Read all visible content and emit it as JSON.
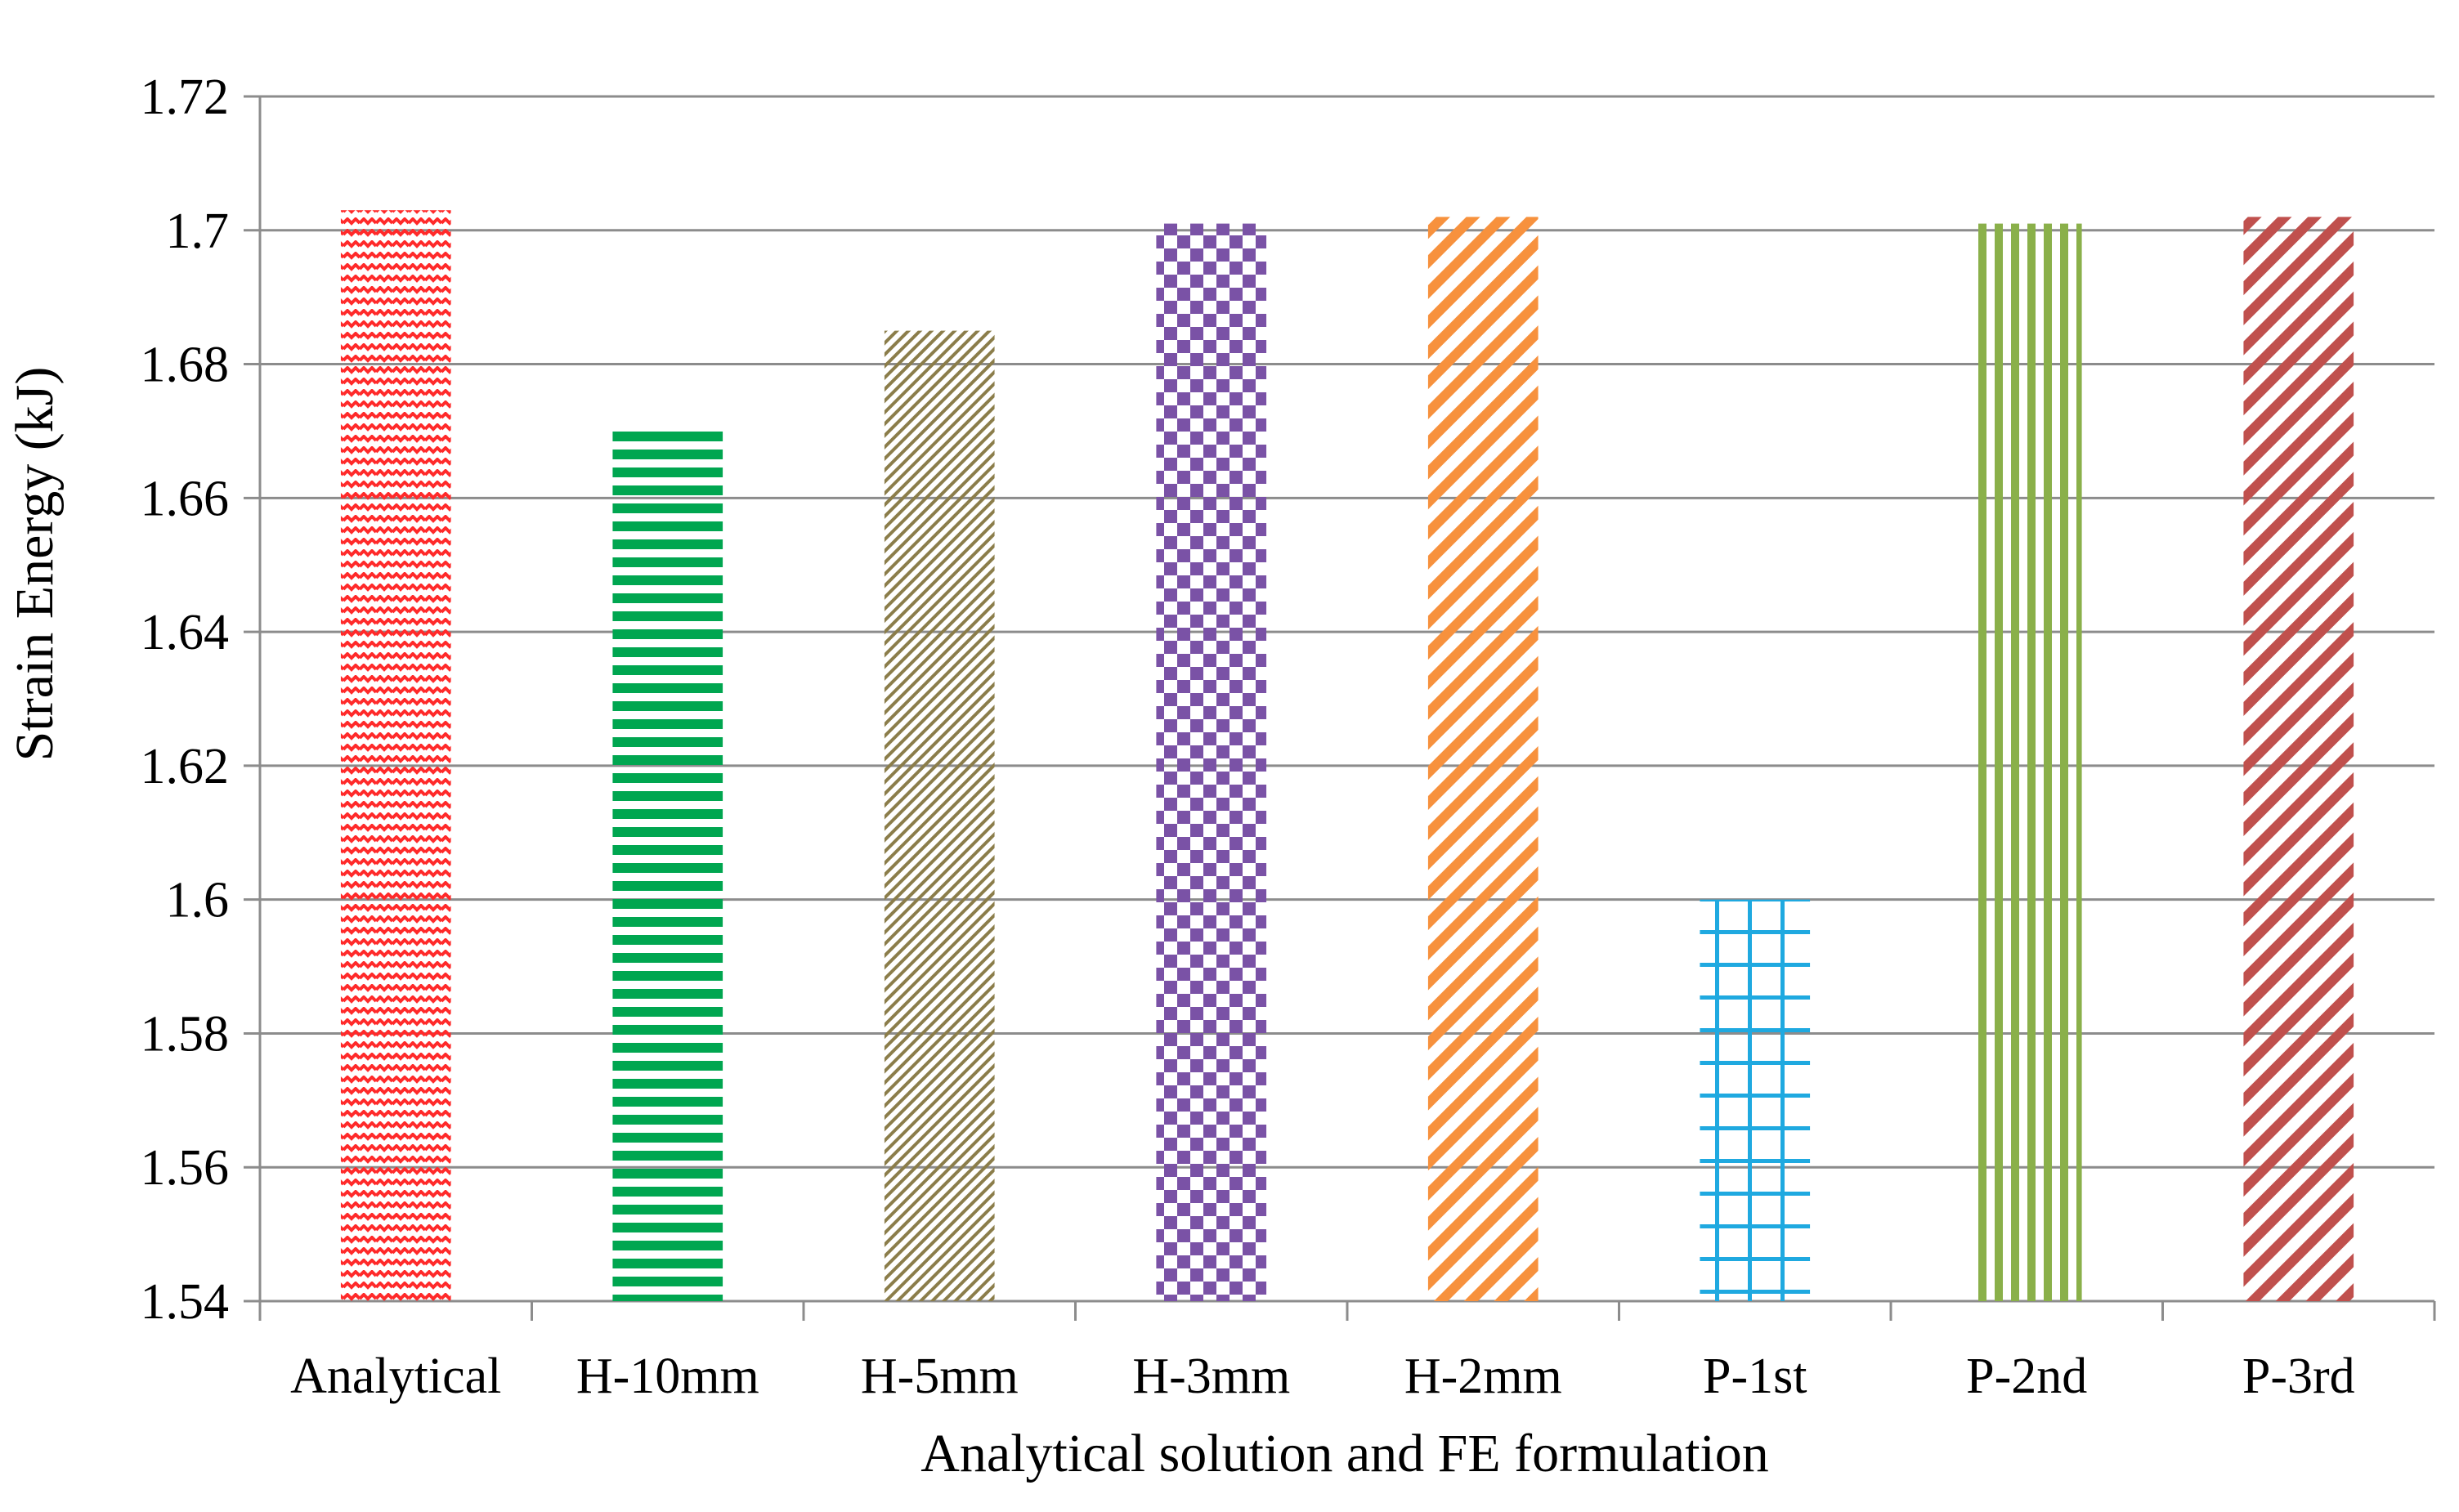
{
  "chart_data": {
    "type": "bar",
    "title": "",
    "xlabel": "Analytical solution and FE formulation",
    "ylabel": "Strain Energy (kJ)",
    "ylim": [
      1.54,
      1.72
    ],
    "yticks": [
      1.54,
      1.56,
      1.58,
      1.6,
      1.62,
      1.64,
      1.66,
      1.68,
      1.7,
      1.72
    ],
    "ytick_labels": [
      "1.54",
      "1.56",
      "1.58",
      "1.6",
      "1.62",
      "1.64",
      "1.66",
      "1.68",
      "1.7",
      "1.72"
    ],
    "grid": true,
    "legend": "none",
    "categories": [
      "Analytical",
      "H-10mm",
      "H-5mm",
      "H-3mm",
      "H-2mm",
      "P-1st",
      "P-2nd",
      "P-3rd"
    ],
    "values": [
      1.703,
      1.67,
      1.685,
      1.701,
      1.702,
      1.6,
      1.701,
      1.702
    ],
    "bars": [
      {
        "color": "#ff2a2a",
        "pattern": "zigzag"
      },
      {
        "color": "#00a650",
        "pattern": "horizontal-lines"
      },
      {
        "color": "#8b7d4a",
        "pattern": "diagonal-fine"
      },
      {
        "color": "#7a52a6",
        "pattern": "checkerboard"
      },
      {
        "color": "#f7913d",
        "pattern": "diagonal-wide"
      },
      {
        "color": "#1fa9e0",
        "pattern": "grid"
      },
      {
        "color": "#8ab04a",
        "pattern": "vertical-lines"
      },
      {
        "color": "#c0504d",
        "pattern": "diagonal-wide"
      }
    ]
  }
}
